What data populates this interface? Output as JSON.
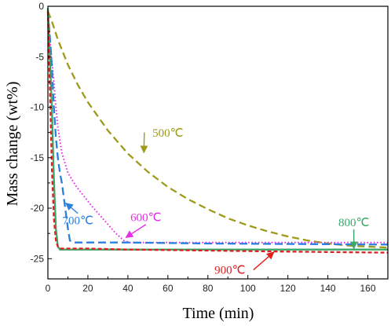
{
  "chart_data": {
    "type": "line",
    "xlabel": "Time (min)",
    "ylabel": "Mass change (wt%)",
    "xlim": [
      0,
      170
    ],
    "ylim": [
      -27,
      0
    ],
    "x_ticks": [
      0,
      20,
      40,
      60,
      80,
      100,
      120,
      140,
      160
    ],
    "y_ticks": [
      0,
      -5,
      -10,
      -15,
      -20,
      -25
    ],
    "grid": false,
    "series": [
      {
        "name": "500℃",
        "color": "#9e9a1a",
        "dash": "dash",
        "x": [
          0,
          2,
          5,
          10,
          15,
          20,
          30,
          40,
          50,
          60,
          70,
          80,
          90,
          100,
          110,
          120,
          130,
          140,
          150,
          160,
          170
        ],
        "y": [
          -0.5,
          -1.5,
          -3.3,
          -5.8,
          -7.8,
          -9.5,
          -12.3,
          -14.6,
          -16.4,
          -17.9,
          -19.1,
          -20.1,
          -21.0,
          -21.7,
          -22.3,
          -22.8,
          -23.2,
          -23.5,
          -23.7,
          -23.8,
          -23.9
        ]
      },
      {
        "name": "600℃",
        "color": "#e52fe5",
        "dash": "dot",
        "x": [
          0,
          1,
          2,
          3,
          4,
          5,
          7,
          10,
          14,
          18,
          22,
          26,
          30,
          34,
          38,
          41,
          45,
          60,
          100,
          170
        ],
        "y": [
          -0.5,
          -3.0,
          -5.5,
          -7.5,
          -10.0,
          -12.0,
          -14.5,
          -16.5,
          -17.8,
          -18.8,
          -19.8,
          -20.7,
          -21.6,
          -22.5,
          -23.2,
          -23.4,
          -23.4,
          -23.4,
          -23.4,
          -23.4
        ]
      },
      {
        "name": "700℃",
        "color": "#2a7fe0",
        "dash": "longdash",
        "x": [
          0,
          1,
          2,
          3,
          4,
          5,
          6,
          7,
          8,
          9,
          10,
          11,
          13,
          20,
          40,
          80,
          170
        ],
        "y": [
          -0.5,
          -3.0,
          -6.0,
          -10.0,
          -13.0,
          -15.0,
          -16.5,
          -17.5,
          -19.0,
          -20.5,
          -22.0,
          -23.2,
          -23.4,
          -23.4,
          -23.4,
          -23.5,
          -23.6
        ]
      },
      {
        "name": "800℃",
        "color": "#3aa86a",
        "dash": "solid",
        "x": [
          0,
          1,
          2,
          3,
          4,
          5,
          6,
          10,
          50,
          100,
          170
        ],
        "y": [
          -0.2,
          -5.0,
          -10.0,
          -17.0,
          -22.0,
          -23.8,
          -24.1,
          -24.1,
          -24.1,
          -24.1,
          -24.1
        ]
      },
      {
        "name": "900℃",
        "color": "#e02020",
        "dash": "shortdash",
        "x": [
          0,
          1,
          2,
          3,
          4,
          5,
          6,
          10,
          20,
          40,
          80,
          120,
          170
        ],
        "y": [
          -0.5,
          -8.0,
          -16.0,
          -21.0,
          -23.2,
          -23.8,
          -24.0,
          -24.0,
          -24.0,
          -24.1,
          -24.2,
          -24.3,
          -24.4
        ]
      }
    ],
    "annotations": [
      {
        "text": "500℃",
        "color": "#9e9a1a",
        "at": [
          60,
          -12.9
        ],
        "arrow_to": [
          48,
          -14.5
        ]
      },
      {
        "text": "600℃",
        "color": "#e52fe5",
        "at": [
          49,
          -21.3
        ],
        "arrow_to": [
          39,
          -22.9
        ]
      },
      {
        "text": "700℃",
        "color": "#2a7fe0",
        "at": [
          15,
          -21.6
        ],
        "arrow_to": [
          9,
          -19.5
        ]
      },
      {
        "text": "800℃",
        "color": "#3aa86a",
        "at": [
          153,
          -21.8
        ],
        "arrow_to": [
          153,
          -24.0
        ]
      },
      {
        "text": "900℃",
        "color": "#e02020",
        "at": [
          91,
          -26.5
        ],
        "arrow_to": [
          113,
          -24.35
        ]
      }
    ]
  }
}
